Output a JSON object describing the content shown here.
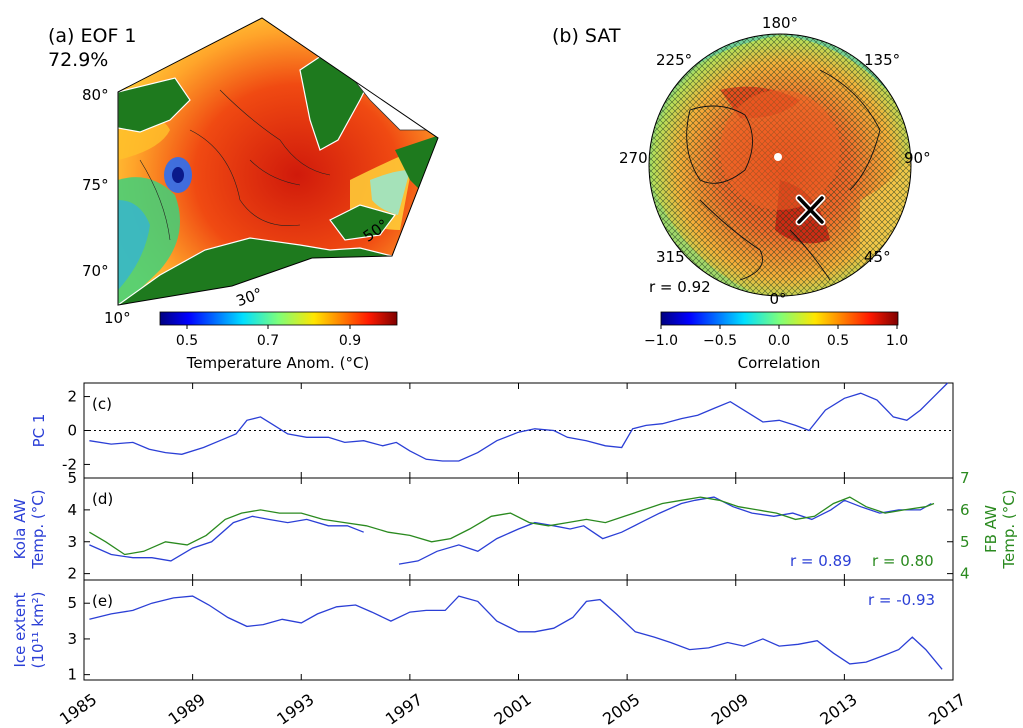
{
  "panel_a": {
    "title": "(a) EOF 1",
    "variance": "72.9%",
    "lat_labels": [
      "80°",
      "75°",
      "70°"
    ],
    "lon_labels": [
      "10°",
      "30°",
      "50°"
    ],
    "colorbar": {
      "ticks": [
        "0.5",
        "0.7",
        "0.9"
      ],
      "label": "Temperature Anom. (°C)"
    }
  },
  "panel_b": {
    "title": "(b) SAT",
    "lon_labels": [
      "180°",
      "225°",
      "135°",
      "270",
      "90°",
      "315",
      "45°",
      "0°"
    ],
    "r_label": "r = 0.92",
    "colorbar": {
      "ticks": [
        "−1.0",
        "−0.5",
        "0.0",
        "0.5",
        "1.0"
      ],
      "label": "Correlation"
    }
  },
  "chart_data": [
    {
      "type": "line",
      "panel": "(c)",
      "ylabel": "PC 1",
      "ylim": [
        -2.8,
        2.8
      ],
      "yticks": [
        -2,
        0,
        2
      ],
      "reference_line": 0,
      "series": [
        {
          "color": "#2b3fd6",
          "x": [
            1985.2,
            1986,
            1986.8,
            1987.4,
            1988,
            1988.6,
            1989.4,
            1990,
            1990.6,
            1991,
            1991.5,
            1991.9,
            1992.5,
            1993.2,
            1994,
            1994.6,
            1995.3,
            1996,
            1996.5,
            1997,
            1997.6,
            1998.2,
            1998.8,
            1999.5,
            2000.2,
            2001,
            2001.6,
            2002.3,
            2002.8,
            2003.5,
            2004.2,
            2004.8,
            2005.2,
            2005.7,
            2006.3,
            2007,
            2007.6,
            2008.2,
            2008.8,
            2009.4,
            2010,
            2010.6,
            2011.2,
            2011.7,
            2012.3,
            2013,
            2013.6,
            2014.2,
            2014.8,
            2015.3,
            2015.8,
            2016.3,
            2016.8
          ],
          "y": [
            -0.6,
            -0.8,
            -0.7,
            -1.1,
            -1.3,
            -1.4,
            -1.0,
            -0.6,
            -0.2,
            0.6,
            0.8,
            0.4,
            -0.2,
            -0.4,
            -0.4,
            -0.7,
            -0.6,
            -0.9,
            -0.7,
            -1.2,
            -1.7,
            -1.8,
            -1.8,
            -1.3,
            -0.6,
            -0.1,
            0.1,
            0.0,
            -0.4,
            -0.6,
            -0.9,
            -1.0,
            0.1,
            0.3,
            0.4,
            0.7,
            0.9,
            1.3,
            1.7,
            1.1,
            0.5,
            0.6,
            0.3,
            0.0,
            1.2,
            1.9,
            2.2,
            1.8,
            0.8,
            0.6,
            1.2,
            2.0,
            2.8
          ]
        }
      ]
    },
    {
      "type": "line",
      "panel": "(d)",
      "ylabel": "Kola AW\nTemp. (°C)",
      "ylabel_right": "FB AW\nTemp. (°C)",
      "ylim": [
        1.8,
        5.0
      ],
      "yticks": [
        2,
        3,
        4,
        5
      ],
      "ylim_right": [
        3.8,
        7.0
      ],
      "yticks_right": [
        4,
        5,
        6,
        7
      ],
      "annotations": [
        "r = 0.89",
        "r = 0.80"
      ],
      "series": [
        {
          "axis": "left",
          "color": "#2b3fd6",
          "x": [
            1985.2,
            1986,
            1986.8,
            1987.5,
            1988.2,
            1989,
            1989.7,
            1990.5,
            1991.2,
            1991.8,
            1992.5,
            1993.2,
            1994,
            1994.7,
            1995.3
          ],
          "y": [
            2.9,
            2.6,
            2.5,
            2.5,
            2.4,
            2.8,
            3.0,
            3.6,
            3.8,
            3.7,
            3.6,
            3.7,
            3.5,
            3.5,
            3.3
          ]
        },
        {
          "axis": "left",
          "color": "#2b3fd6",
          "x": [
            1996.6,
            1997.3,
            1998,
            1998.8,
            1999.5,
            2000.2,
            2001,
            2001.6,
            2002.3,
            2002.9,
            2003.4,
            2004.1,
            2004.8,
            2005.5,
            2006.2,
            2007,
            2007.5,
            2008.2,
            2008.9,
            2009.6,
            2010.4,
            2011.1,
            2011.8,
            2012.5,
            2013,
            2013.6,
            2014.3,
            2015,
            2015.8,
            2016.2
          ],
          "y": [
            2.3,
            2.4,
            2.7,
            2.9,
            2.7,
            3.1,
            3.4,
            3.6,
            3.5,
            3.4,
            3.5,
            3.1,
            3.3,
            3.6,
            3.9,
            4.2,
            4.3,
            4.4,
            4.1,
            3.9,
            3.8,
            3.9,
            3.7,
            4.0,
            4.3,
            4.1,
            3.9,
            4.0,
            4.0,
            4.2
          ]
        },
        {
          "axis": "right",
          "color": "#2a8a1f",
          "x": [
            1985.2,
            1985.8,
            1986.5,
            1987.2,
            1988,
            1988.8,
            1989.5,
            1990.2,
            1990.8,
            1991.5,
            1992.2,
            1993,
            1993.8,
            1994.6,
            1995.4,
            1996.2,
            1997,
            1997.8,
            1998.5,
            1999.2,
            2000,
            2000.7,
            2001.4,
            2002.1,
            2002.8,
            2003.5,
            2004.2,
            2004.9,
            2005.6,
            2006.3,
            2007,
            2007.7,
            2008.4,
            2009.1,
            2009.8,
            2010.5,
            2011.2,
            2011.9,
            2012.6,
            2013.2,
            2013.8,
            2014.5,
            2015.2,
            2016,
            2016.3
          ],
          "y": [
            5.3,
            5.0,
            4.6,
            4.7,
            5.0,
            4.9,
            5.2,
            5.7,
            5.9,
            6.0,
            5.9,
            5.9,
            5.7,
            5.6,
            5.5,
            5.3,
            5.2,
            5.0,
            5.1,
            5.4,
            5.8,
            5.9,
            5.6,
            5.5,
            5.6,
            5.7,
            5.6,
            5.8,
            6.0,
            6.2,
            6.3,
            6.4,
            6.3,
            6.1,
            6.0,
            5.9,
            5.7,
            5.8,
            6.2,
            6.4,
            6.1,
            5.9,
            6.0,
            6.1,
            6.2
          ]
        }
      ]
    },
    {
      "type": "line",
      "panel": "(e)",
      "ylabel": "Ice extent\n(10¹¹ km²)",
      "ylim": [
        0.7,
        6.3
      ],
      "yticks": [
        1,
        3,
        5
      ],
      "annotations": [
        "r = -0.93"
      ],
      "x_ticks": [
        "1985",
        "1989",
        "1993",
        "1997",
        "2001",
        "2005",
        "2009",
        "2013",
        "2017"
      ],
      "xlim": [
        1985,
        2017
      ],
      "series": [
        {
          "color": "#2b3fd6",
          "x": [
            1985.2,
            1986,
            1986.8,
            1987.5,
            1988.3,
            1989,
            1989.6,
            1990.3,
            1991,
            1991.6,
            1992.3,
            1993,
            1993.6,
            1994.3,
            1995,
            1995.6,
            1996.3,
            1997,
            1997.6,
            1998.3,
            1998.8,
            1999.5,
            2000.2,
            2001,
            2001.6,
            2002.3,
            2003,
            2003.5,
            2004,
            2004.6,
            2005.3,
            2006,
            2006.6,
            2007.3,
            2008,
            2008.7,
            2009.3,
            2010,
            2010.6,
            2011.3,
            2012,
            2012.6,
            2013.2,
            2013.8,
            2014.5,
            2015,
            2015.5,
            2016,
            2016.6
          ],
          "y": [
            4.1,
            4.4,
            4.6,
            5.0,
            5.3,
            5.4,
            4.9,
            4.2,
            3.7,
            3.8,
            4.1,
            3.9,
            4.4,
            4.8,
            4.9,
            4.5,
            4.0,
            4.5,
            4.6,
            4.6,
            5.4,
            5.1,
            4.0,
            3.4,
            3.4,
            3.6,
            4.2,
            5.1,
            5.2,
            4.4,
            3.4,
            3.1,
            2.8,
            2.4,
            2.5,
            2.8,
            2.6,
            3.0,
            2.6,
            2.7,
            2.9,
            2.2,
            1.6,
            1.7,
            2.1,
            2.4,
            3.1,
            2.4,
            1.3
          ]
        }
      ]
    }
  ],
  "colors": {
    "line_blue": "#2b3fd6",
    "line_green": "#2a8a1f",
    "land": "#1e7a1e"
  }
}
